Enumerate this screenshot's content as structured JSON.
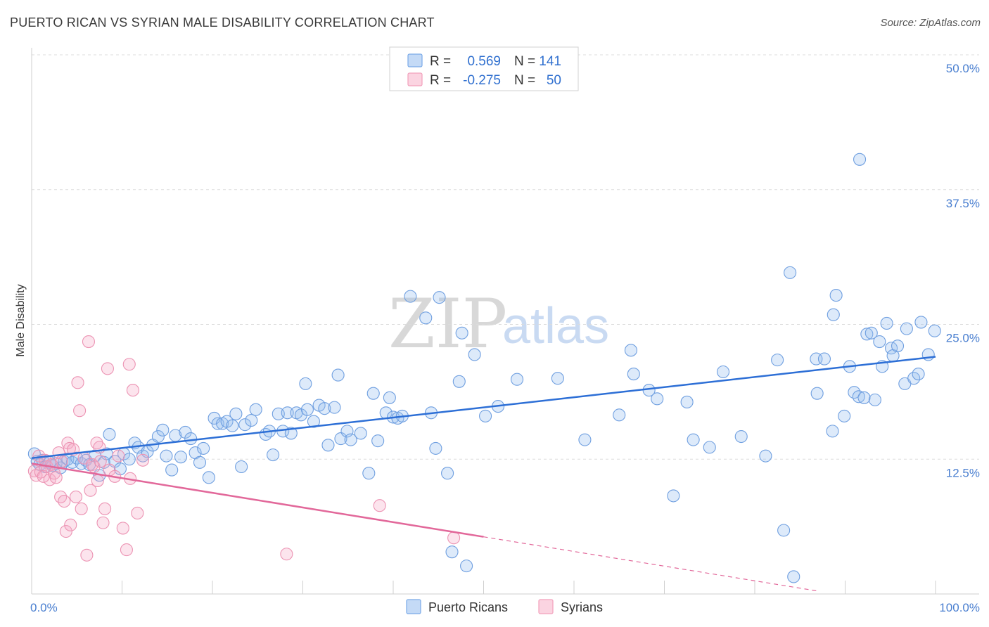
{
  "header": {
    "title": "PUERTO RICAN VS SYRIAN MALE DISABILITY CORRELATION CHART",
    "source": "Source: ZipAtlas.com"
  },
  "watermark": {
    "zip": "ZIP",
    "atlas": "atlas"
  },
  "legend": {
    "rows": [
      {
        "r_label": "R =",
        "r_value": "0.569",
        "n_label": "N =",
        "n_value": "141",
        "color": "#7aaae8"
      },
      {
        "r_label": "R =",
        "r_value": "-0.275",
        "n_label": "N =",
        "n_value": "50",
        "color": "#f2a0bc"
      }
    ]
  },
  "bottom_legend": [
    {
      "label": "Puerto Ricans",
      "color": "#7aaae8"
    },
    {
      "label": "Syrians",
      "color": "#f2a0bc"
    }
  ],
  "chart_data": {
    "type": "scatter",
    "title": "PUERTO RICAN VS SYRIAN MALE DISABILITY CORRELATION CHART",
    "xlabel": "",
    "ylabel": "Male Disability",
    "xlim": [
      0,
      100
    ],
    "ylim": [
      0,
      50
    ],
    "y_ticks": [
      12.5,
      25.0,
      37.5,
      50.0
    ],
    "y_tick_labels": [
      "12.5%",
      "25.0%",
      "37.5%",
      "50.0%"
    ],
    "x_tick_labels": [
      "0.0%",
      "100.0%"
    ],
    "grid": true,
    "legend_position": "top-center",
    "series": [
      {
        "name": "Puerto Ricans",
        "color": "#7aaae8",
        "trend": {
          "x": [
            0,
            100
          ],
          "y": [
            12.6,
            22.0
          ]
        },
        "points": [
          [
            0.3,
            13
          ],
          [
            0.6,
            12.3
          ],
          [
            0.9,
            12
          ],
          [
            1.2,
            12.4
          ],
          [
            1.5,
            11.8
          ],
          [
            2,
            12.2
          ],
          [
            2.3,
            11.9
          ],
          [
            2.7,
            12.1
          ],
          [
            3.2,
            11.7
          ],
          [
            3.6,
            12.3
          ],
          [
            4,
            12.5
          ],
          [
            4.5,
            12.2
          ],
          [
            5,
            12.6
          ],
          [
            5.5,
            12.1
          ],
          [
            6,
            12.4
          ],
          [
            6.4,
            12
          ],
          [
            7,
            12.8
          ],
          [
            7.5,
            11
          ],
          [
            8,
            12.2
          ],
          [
            8.3,
            13
          ],
          [
            8.6,
            14.8
          ],
          [
            9.2,
            12.3
          ],
          [
            9.8,
            11.6
          ],
          [
            10.2,
            13
          ],
          [
            10.8,
            12.5
          ],
          [
            11.4,
            14
          ],
          [
            11.8,
            13.6
          ],
          [
            12.3,
            12.8
          ],
          [
            12.8,
            13.2
          ],
          [
            13.4,
            13.8
          ],
          [
            14,
            14.6
          ],
          [
            14.5,
            15.2
          ],
          [
            14.9,
            12.8
          ],
          [
            15.5,
            11.5
          ],
          [
            15.9,
            14.7
          ],
          [
            16.5,
            12.7
          ],
          [
            17,
            15
          ],
          [
            17.6,
            14.4
          ],
          [
            18.1,
            13.1
          ],
          [
            18.6,
            12.2
          ],
          [
            19,
            13.5
          ],
          [
            19.6,
            10.8
          ],
          [
            20.2,
            16.3
          ],
          [
            20.6,
            15.8
          ],
          [
            21.1,
            15.8
          ],
          [
            21.6,
            16
          ],
          [
            22.2,
            15.6
          ],
          [
            22.6,
            16.7
          ],
          [
            23.2,
            11.8
          ],
          [
            23.6,
            15.7
          ],
          [
            24.3,
            16.1
          ],
          [
            24.8,
            17.1
          ],
          [
            25.9,
            14.8
          ],
          [
            26.3,
            15.1
          ],
          [
            26.7,
            12.9
          ],
          [
            27.3,
            16.7
          ],
          [
            27.8,
            15.1
          ],
          [
            28.3,
            16.8
          ],
          [
            28.7,
            14.9
          ],
          [
            29.3,
            16.8
          ],
          [
            29.8,
            16.6
          ],
          [
            30.3,
            19.5
          ],
          [
            30.5,
            17.1
          ],
          [
            31.2,
            16
          ],
          [
            31.8,
            17.5
          ],
          [
            32.4,
            17.2
          ],
          [
            32.8,
            13.8
          ],
          [
            33.5,
            17.3
          ],
          [
            33.9,
            20.3
          ],
          [
            34.2,
            14.4
          ],
          [
            34.9,
            15.1
          ],
          [
            35.3,
            14.3
          ],
          [
            36.4,
            14.9
          ],
          [
            37.3,
            11.2
          ],
          [
            37.8,
            18.6
          ],
          [
            38.3,
            14.2
          ],
          [
            39.2,
            16.8
          ],
          [
            39.6,
            18.2
          ],
          [
            40,
            16.4
          ],
          [
            40.5,
            16.3
          ],
          [
            41,
            16.5
          ],
          [
            41.9,
            27.6
          ],
          [
            43.6,
            25.6
          ],
          [
            44.2,
            16.8
          ],
          [
            44.7,
            13.5
          ],
          [
            45.1,
            27.5
          ],
          [
            46,
            11.2
          ],
          [
            46.5,
            3.9
          ],
          [
            47.3,
            19.7
          ],
          [
            47.6,
            24.2
          ],
          [
            48.1,
            2.6
          ],
          [
            49,
            22.2
          ],
          [
            50.2,
            16.5
          ],
          [
            51.6,
            17.4
          ],
          [
            53.7,
            19.9
          ],
          [
            58.2,
            20
          ],
          [
            61.2,
            14.3
          ],
          [
            65,
            16.6
          ],
          [
            66.3,
            22.6
          ],
          [
            66.6,
            20.4
          ],
          [
            68.3,
            18.9
          ],
          [
            69.2,
            18.1
          ],
          [
            71,
            9.1
          ],
          [
            72.5,
            17.8
          ],
          [
            73.2,
            14.3
          ],
          [
            75,
            13.6
          ],
          [
            76.5,
            20.6
          ],
          [
            78.5,
            14.6
          ],
          [
            81.2,
            12.8
          ],
          [
            82.5,
            21.7
          ],
          [
            83.2,
            5.9
          ],
          [
            83.9,
            29.8
          ],
          [
            84.3,
            1.6
          ],
          [
            86.8,
            21.8
          ],
          [
            86.9,
            18.6
          ],
          [
            87.7,
            21.8
          ],
          [
            88.6,
            15.1
          ],
          [
            88.7,
            25.9
          ],
          [
            89,
            27.7
          ],
          [
            89.9,
            16.5
          ],
          [
            90.5,
            21.1
          ],
          [
            91,
            18.7
          ],
          [
            91.5,
            18.3
          ],
          [
            91.6,
            40.3
          ],
          [
            92.1,
            18.2
          ],
          [
            92.4,
            24.1
          ],
          [
            92.9,
            24.2
          ],
          [
            93.3,
            18
          ],
          [
            93.8,
            23.4
          ],
          [
            94.1,
            21.1
          ],
          [
            94.6,
            25.1
          ],
          [
            95.1,
            22.8
          ],
          [
            95.3,
            22.1
          ],
          [
            95.8,
            23
          ],
          [
            96.6,
            19.5
          ],
          [
            96.8,
            24.6
          ],
          [
            97.6,
            20
          ],
          [
            98.1,
            20.4
          ],
          [
            98.4,
            25.2
          ],
          [
            99.2,
            22.2
          ],
          [
            99.9,
            24.4
          ]
        ]
      },
      {
        "name": "Syrians",
        "color": "#f2a0bc",
        "trend": {
          "x": [
            0,
            50
          ],
          "y": [
            12.1,
            5.3
          ]
        },
        "points": [
          [
            0.3,
            11.4
          ],
          [
            0.5,
            11
          ],
          [
            0.8,
            12.8
          ],
          [
            1,
            11.3
          ],
          [
            1.3,
            10.9
          ],
          [
            1.5,
            12.4
          ],
          [
            1.7,
            11.8
          ],
          [
            2,
            10.6
          ],
          [
            2.2,
            12
          ],
          [
            2.5,
            11.2
          ],
          [
            2.7,
            10.8
          ],
          [
            3,
            13.1
          ],
          [
            3.2,
            9
          ],
          [
            3.3,
            12.3
          ],
          [
            3.6,
            8.6
          ],
          [
            3.8,
            5.8
          ],
          [
            4,
            14
          ],
          [
            4.2,
            13.5
          ],
          [
            4.3,
            6.4
          ],
          [
            4.6,
            13.4
          ],
          [
            4.9,
            9
          ],
          [
            5.1,
            19.6
          ],
          [
            5.3,
            17
          ],
          [
            5.5,
            7.9
          ],
          [
            5.8,
            12.6
          ],
          [
            6.1,
            3.6
          ],
          [
            6.3,
            23.4
          ],
          [
            6.5,
            9.6
          ],
          [
            6.7,
            12
          ],
          [
            6.9,
            11.8
          ],
          [
            7.2,
            14
          ],
          [
            7.3,
            10.5
          ],
          [
            7.5,
            13.6
          ],
          [
            7.6,
            12.3
          ],
          [
            7.9,
            6.6
          ],
          [
            8.1,
            7.9
          ],
          [
            8.4,
            20.9
          ],
          [
            8.6,
            11.5
          ],
          [
            9.2,
            10.9
          ],
          [
            9.6,
            12.8
          ],
          [
            10.1,
            6.1
          ],
          [
            10.5,
            4.1
          ],
          [
            10.8,
            21.3
          ],
          [
            10.9,
            10.7
          ],
          [
            11.2,
            18.9
          ],
          [
            11.7,
            7.5
          ],
          [
            12.3,
            12.4
          ],
          [
            28.2,
            3.7
          ],
          [
            38.5,
            8.2
          ],
          [
            46.7,
            5.2
          ]
        ]
      }
    ]
  }
}
